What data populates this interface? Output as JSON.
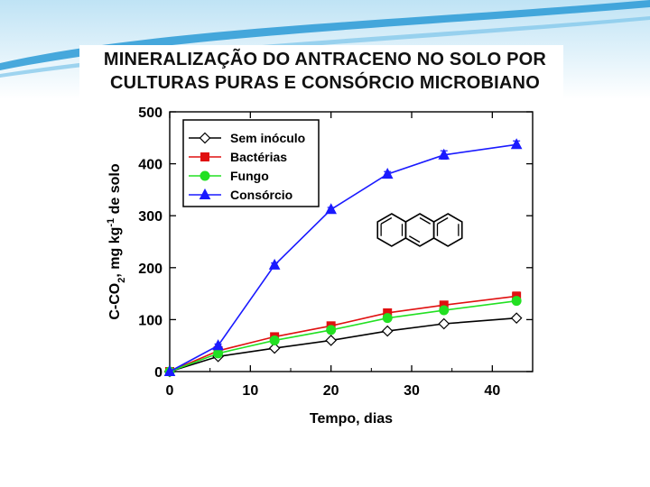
{
  "slide": {
    "title_line_1": "MINERALIZAÇÃO DO ANTRACENO NO SOLO POR",
    "title_line_2": "CULTURAS PURAS E CONSÓRCIO MICROBIANO",
    "accent_color": "#1e8fd0"
  },
  "chart_data": {
    "type": "line",
    "title": "",
    "xlabel": "Tempo, dias",
    "ylabel_parts": [
      "C-CO",
      "2",
      ", mg kg",
      "-1",
      " de solo"
    ],
    "xlim": [
      0,
      45
    ],
    "ylim": [
      0,
      500
    ],
    "xticks": [
      0,
      10,
      20,
      30,
      40
    ],
    "yticks": [
      0,
      100,
      200,
      300,
      400,
      500
    ],
    "x": [
      0,
      6,
      13,
      20,
      27,
      34,
      43
    ],
    "legend_position": "top-left",
    "series": [
      {
        "name": "Sem inóculo",
        "color": "#000000",
        "marker": "diamond",
        "filled": false,
        "values": [
          0,
          29,
          45,
          60,
          78,
          92,
          103
        ],
        "errors": [
          0,
          0,
          0,
          0,
          0,
          0,
          0
        ]
      },
      {
        "name": "Bactérias",
        "color": "#e01010",
        "marker": "square",
        "filled": true,
        "values": [
          0,
          40,
          67,
          88,
          113,
          128,
          145
        ],
        "errors": [
          0,
          0,
          0,
          0,
          4,
          6,
          8
        ]
      },
      {
        "name": "Fungo",
        "color": "#22e022",
        "marker": "circle",
        "filled": true,
        "values": [
          0,
          35,
          60,
          80,
          103,
          118,
          136
        ],
        "errors": [
          0,
          0,
          0,
          0,
          0,
          4,
          5
        ]
      },
      {
        "name": "Consórcio",
        "color": "#1a1aff",
        "marker": "triangle",
        "filled": true,
        "values": [
          0,
          50,
          205,
          312,
          380,
          417,
          437
        ],
        "errors": [
          0,
          3,
          4,
          4,
          5,
          8,
          7
        ]
      }
    ]
  }
}
